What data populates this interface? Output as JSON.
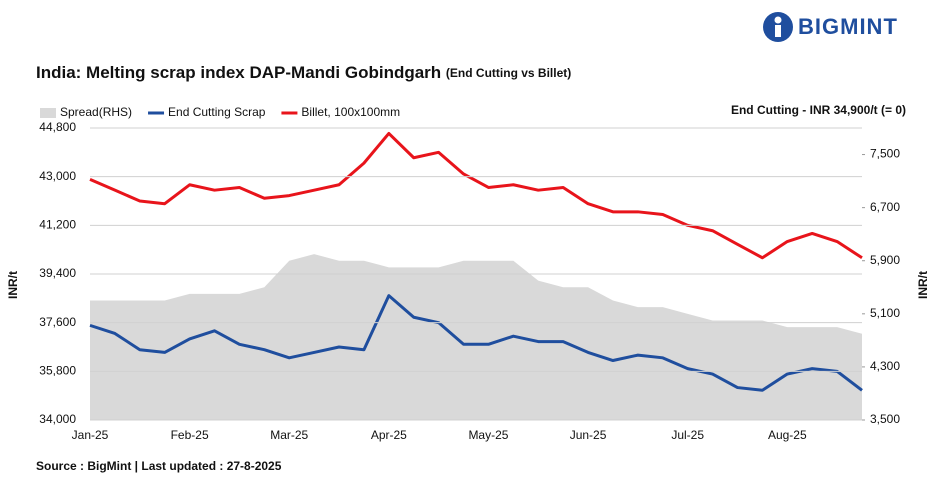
{
  "logo": "BIGMINT",
  "chart_data": {
    "type": "line",
    "title": "India: Melting scrap index DAP-Mandi Gobindgarh",
    "subtitle": "(End Cutting vs Billet)",
    "annotation": "End Cutting - INR 34,900/t (= 0)",
    "source": "Source : BigMint | Last updated : 27-8-2025",
    "y_label": "INR/t",
    "y2_label": "INR/t",
    "categories": [
      "Jan-25",
      null,
      null,
      null,
      "Feb-25",
      null,
      null,
      null,
      "Mar-25",
      null,
      null,
      null,
      "Apr-25",
      null,
      null,
      null,
      "May-25",
      null,
      null,
      null,
      "Jun-25",
      null,
      null,
      null,
      "Jul-25",
      null,
      null,
      null,
      "Aug-25",
      null,
      null,
      null
    ],
    "series": [
      {
        "name": "Spread(RHS)",
        "color": "#d9d9d9",
        "axis": "y2",
        "kind": "area",
        "values": [
          5300,
          5300,
          5300,
          5300,
          5400,
          5400,
          5400,
          5500,
          5900,
          6000,
          5900,
          5900,
          5800,
          5800,
          5800,
          5900,
          5900,
          5900,
          5600,
          5500,
          5500,
          5300,
          5200,
          5200,
          5100,
          5000,
          5000,
          5000,
          4900,
          4900,
          4900,
          4800
        ]
      },
      {
        "name": "End Cutting Scrap",
        "color": "#1f4e9e",
        "values": [
          37500,
          37200,
          36600,
          36500,
          37000,
          37300,
          36800,
          36600,
          36300,
          36500,
          36700,
          36600,
          38600,
          37800,
          37600,
          36800,
          36800,
          37100,
          36900,
          36900,
          36500,
          36200,
          36400,
          36300,
          35900,
          35700,
          35200,
          35100,
          35700,
          35900,
          35800,
          35100
        ]
      },
      {
        "name": "Billet, 100x100mm",
        "color": "#e8141b",
        "values": [
          42900,
          42500,
          42100,
          42000,
          42700,
          42500,
          42600,
          42200,
          42300,
          42500,
          42700,
          43500,
          44600,
          43700,
          43900,
          43100,
          42600,
          42700,
          42500,
          42600,
          42000,
          41700,
          41700,
          41600,
          41200,
          41000,
          40500,
          40000,
          40600,
          40900,
          40600,
          40000
        ]
      }
    ],
    "ylim": [
      34000,
      44800
    ],
    "yticks": [
      {
        "value": 34000,
        "label": "34,000"
      },
      {
        "value": 35800,
        "label": "35,800"
      },
      {
        "value": 37600,
        "label": "37,600"
      },
      {
        "value": 39400,
        "label": "39,400"
      },
      {
        "value": 41200,
        "label": "41,200"
      },
      {
        "value": 43000,
        "label": "43,000"
      },
      {
        "value": 44800,
        "label": "44,800"
      }
    ],
    "y2lim": [
      3500,
      7900
    ],
    "y2ticks": [
      {
        "value": 3500,
        "label": "3,500"
      },
      {
        "value": 4300,
        "label": "4,300"
      },
      {
        "value": 5100,
        "label": "5,100"
      },
      {
        "value": 5900,
        "label": "5,900"
      },
      {
        "value": 6700,
        "label": "6,700"
      },
      {
        "value": 7500,
        "label": "7,500"
      }
    ],
    "grid": true,
    "legend": "top-left"
  }
}
